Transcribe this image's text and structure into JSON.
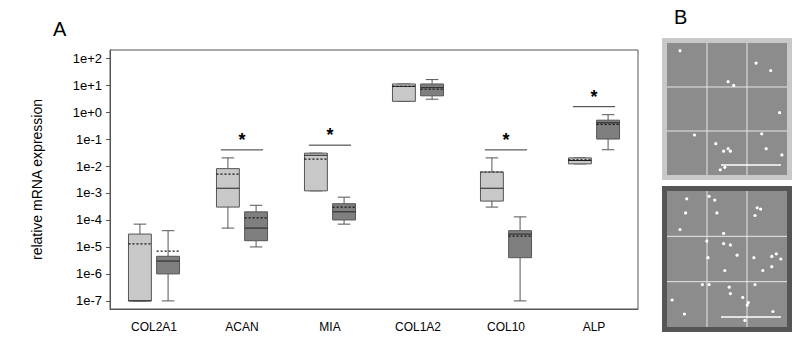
{
  "panel_labels": [
    "A",
    "B"
  ],
  "chart_data": {
    "type": "boxplot",
    "ylabel": "relative mRNA expression",
    "categories": [
      "COL2A1",
      "ACAN",
      "MIA",
      "COL1A2",
      "COL10",
      "ALP"
    ],
    "log": "y",
    "grid": false,
    "ylim": [
      5e-08,
      200
    ],
    "yticks": [
      {
        "value": 1e-07,
        "label": "1e-7"
      },
      {
        "value": 1e-06,
        "label": "1e-6"
      },
      {
        "value": 1e-05,
        "label": "1e-5"
      },
      {
        "value": 0.0001,
        "label": "1e-4"
      },
      {
        "value": 0.001,
        "label": "1e-3"
      },
      {
        "value": 0.01,
        "label": "1e-2"
      },
      {
        "value": 0.1,
        "label": "1e-1"
      },
      {
        "value": 1,
        "label": "1e+0"
      },
      {
        "value": 10,
        "label": "1e+1"
      },
      {
        "value": 100,
        "label": "1e+2"
      }
    ],
    "series": [
      {
        "color": "#c8c8c8",
        "values": [
          [
            1e-07,
            1e-07,
            1e-07,
            3e-05,
            7e-05
          ],
          [
            5e-05,
            0.0003,
            0.0015,
            0.008,
            0.02
          ],
          [
            0.0012,
            0.0012,
            0.025,
            0.03,
            0.03
          ],
          [
            2.5,
            2.5,
            9,
            11,
            11
          ],
          [
            0.0003,
            0.0005,
            0.0015,
            0.006,
            0.02
          ],
          [
            0.012,
            0.012,
            0.016,
            0.02,
            0.02
          ]
        ],
        "means": [
          1.3e-05,
          0.005,
          0.018,
          9,
          0.006,
          0.017
        ]
      },
      {
        "color": "#7f7f7f",
        "values": [
          [
            1e-07,
            1e-06,
            3e-06,
            4.5e-06,
            4e-05
          ],
          [
            1e-05,
            1.7e-05,
            5e-05,
            0.0002,
            0.00035
          ],
          [
            7e-05,
            0.0001,
            0.0002,
            0.0004,
            0.0007
          ],
          [
            3,
            4,
            8,
            11,
            16
          ],
          [
            1e-07,
            4e-06,
            3e-05,
            4e-05,
            0.00013
          ],
          [
            0.04,
            0.1,
            0.4,
            0.5,
            0.8
          ]
        ],
        "means": [
          7e-06,
          0.00012,
          0.0003,
          7,
          2.5e-05,
          0.35
        ]
      }
    ],
    "annotations": [
      {
        "category": "ACAN",
        "text": "*"
      },
      {
        "category": "MIA",
        "text": "*"
      },
      {
        "category": "COL10",
        "text": "*"
      },
      {
        "category": "ALP",
        "text": "*"
      }
    ]
  }
}
